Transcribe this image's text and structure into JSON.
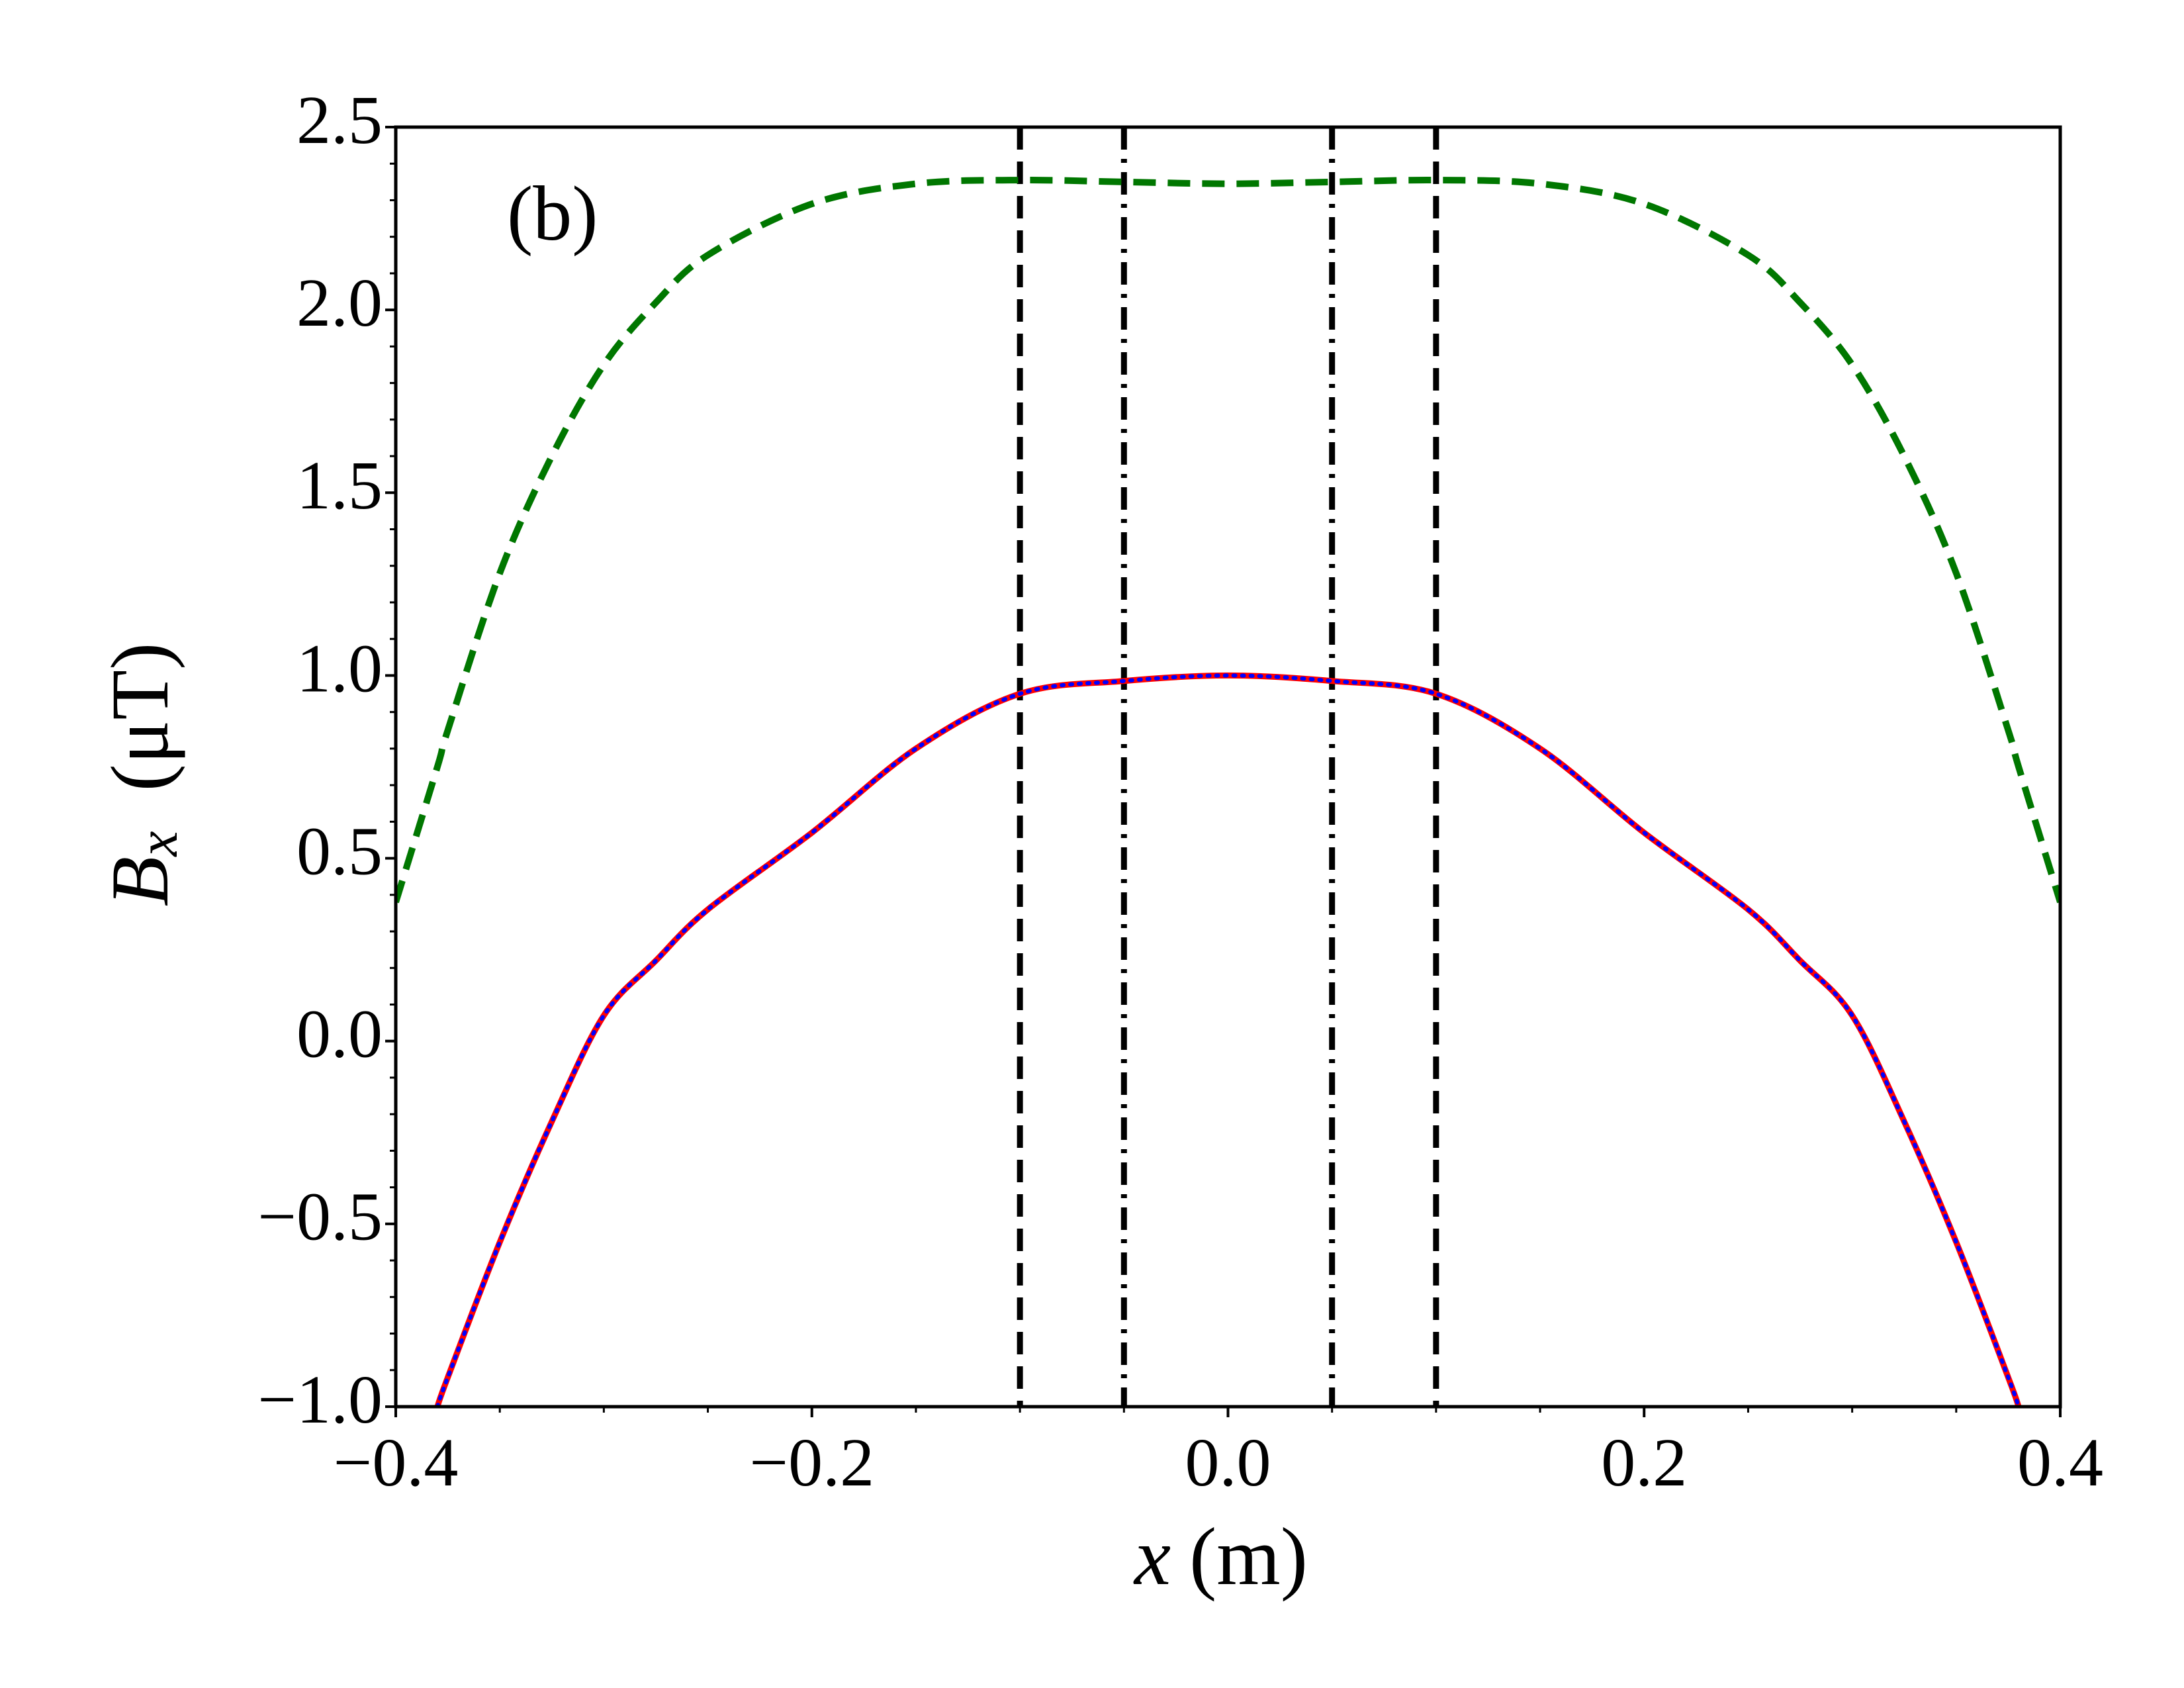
{
  "chart_data": {
    "type": "line",
    "annotation": "(b)",
    "xlabel": {
      "symbol": "x",
      "unit": "(m)"
    },
    "ylabel": {
      "symbol": "B",
      "subscript": "x",
      "unit": "(μT)"
    },
    "x": [
      -0.4,
      -0.38,
      -0.375,
      -0.35,
      -0.325,
      -0.3,
      -0.275,
      -0.25,
      -0.2,
      -0.15,
      -0.1,
      -0.05,
      0,
      0.05,
      0.1,
      0.15,
      0.2,
      0.25,
      0.275,
      0.3,
      0.325,
      0.35,
      0.375,
      0.38,
      0.4
    ],
    "series": [
      {
        "color": "#007700",
        "style": "dashed",
        "values": [
          0.38,
          0.75,
          0.85,
          1.28,
          1.6,
          1.85,
          2.02,
          2.15,
          2.29,
          2.345,
          2.355,
          2.35,
          2.345,
          2.35,
          2.355,
          2.345,
          2.29,
          2.15,
          2.02,
          1.85,
          1.6,
          1.28,
          0.85,
          0.75,
          0.38
        ]
      },
      {
        "color": "#ff0000",
        "style": "solid",
        "values": [
          null,
          -1.0,
          -0.92,
          -0.55,
          -0.22,
          0.07,
          0.22,
          0.36,
          0.57,
          0.8,
          0.95,
          0.985,
          1.0,
          0.985,
          0.95,
          0.8,
          0.57,
          0.36,
          0.22,
          0.07,
          -0.22,
          -0.55,
          -0.92,
          -1.0,
          null
        ]
      },
      {
        "color": "#0000ff",
        "style": "dotted",
        "values": [
          null,
          -1.0,
          -0.92,
          -0.55,
          -0.22,
          0.07,
          0.22,
          0.36,
          0.57,
          0.8,
          0.95,
          0.985,
          1.0,
          0.985,
          0.95,
          0.8,
          0.57,
          0.36,
          0.22,
          0.07,
          -0.22,
          -0.55,
          -0.92,
          -1.0,
          null
        ]
      }
    ],
    "vlines": [
      {
        "x": -0.1,
        "style": "dashed",
        "color": "#000000"
      },
      {
        "x": -0.05,
        "style": "dashdot",
        "color": "#000000"
      },
      {
        "x": 0.05,
        "style": "dashdot",
        "color": "#000000"
      },
      {
        "x": 0.1,
        "style": "dashed",
        "color": "#000000"
      }
    ],
    "xlim": [
      -0.4,
      0.4
    ],
    "ylim": [
      -1.0,
      2.5
    ],
    "xticks": [
      {
        "value": -0.4,
        "label": "−0.4"
      },
      {
        "value": -0.2,
        "label": "−0.2"
      },
      {
        "value": 0,
        "label": "0.0"
      },
      0.2,
      0.4
    ],
    "yticks": [
      {
        "value": -1.0,
        "label": "−1.0"
      },
      {
        "value": -0.5,
        "label": "−0.5"
      },
      {
        "value": 0,
        "label": "0.0"
      },
      0.5,
      {
        "value": 1,
        "label": "1.0"
      },
      1.5,
      {
        "value": 2,
        "label": "2.0"
      },
      2.5
    ],
    "minor_divisions": {
      "x": 4,
      "y": 5
    },
    "grid": false
  }
}
